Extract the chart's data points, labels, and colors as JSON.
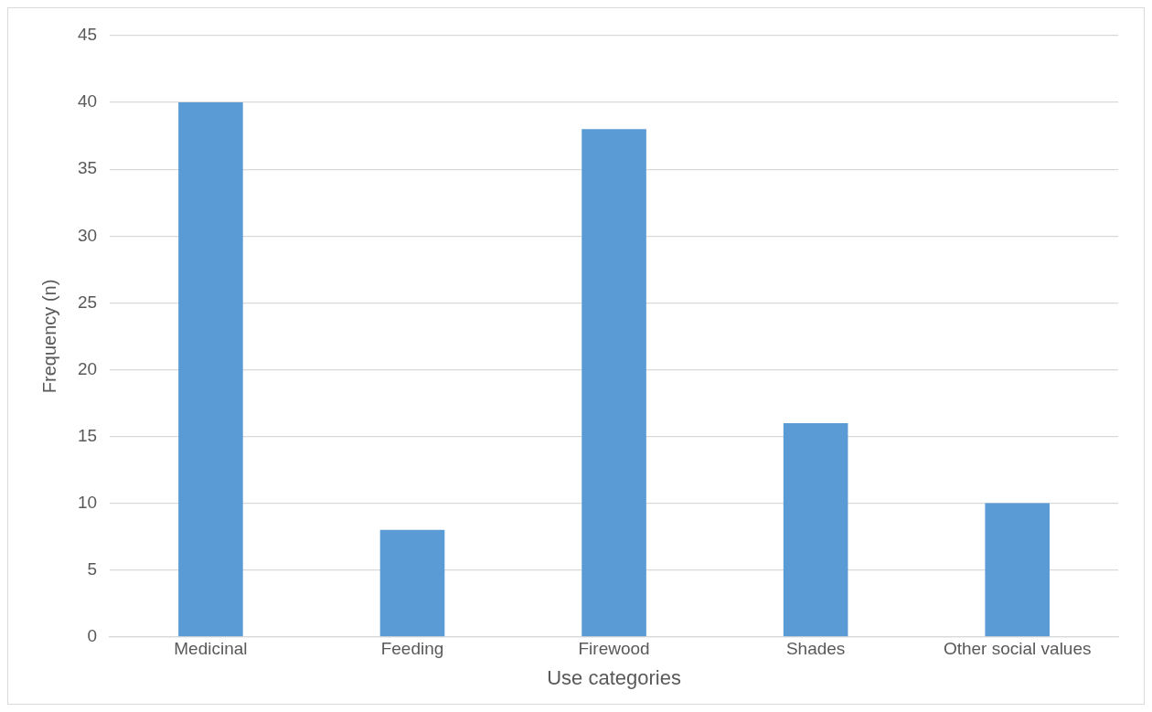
{
  "chart_data": {
    "type": "bar",
    "xlabel": "Use categories",
    "ylabel": "Frequency (n)",
    "categories": [
      "Medicinal",
      "Feeding",
      "Firewood",
      "Shades",
      "Other social values"
    ],
    "values": [
      40,
      8,
      38,
      16,
      10
    ],
    "color": "#5b9bd5",
    "ylim": [
      0,
      45
    ],
    "yticks": [
      0,
      5,
      10,
      15,
      20,
      25,
      30,
      35,
      40,
      45
    ],
    "grid": "y"
  }
}
